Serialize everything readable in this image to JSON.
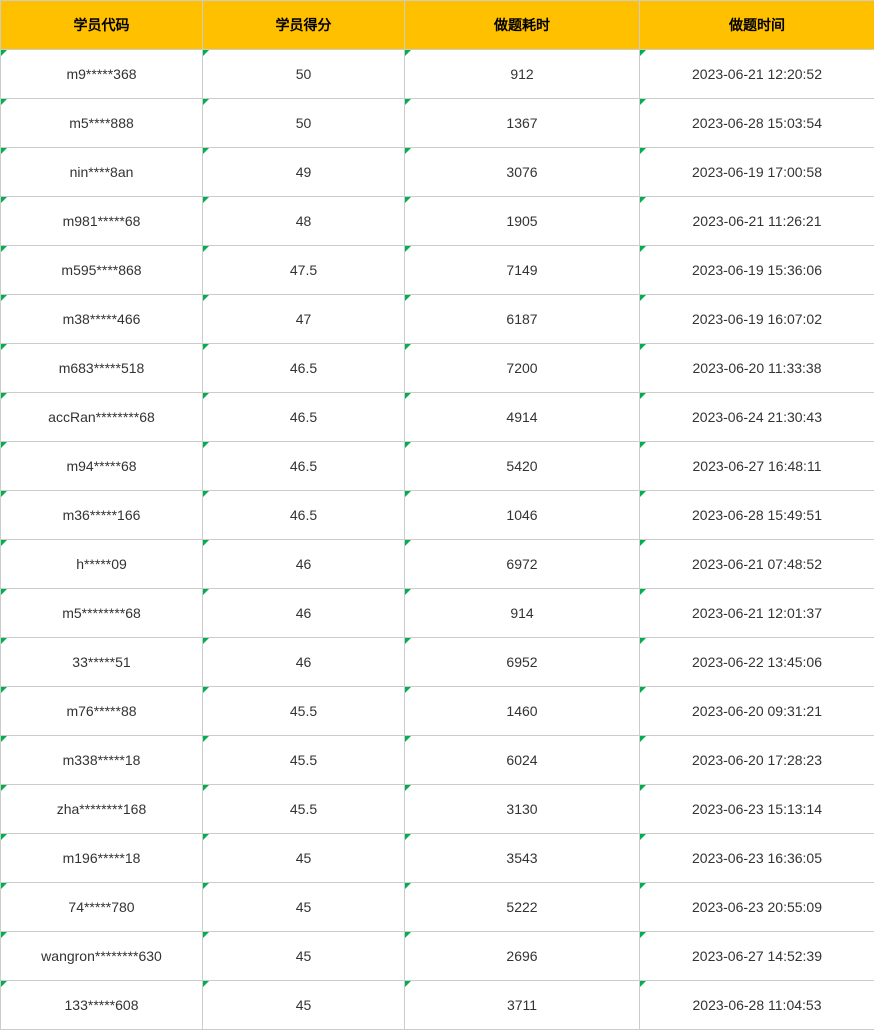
{
  "table": {
    "headers": [
      "学员代码",
      "学员得分",
      "做题耗时",
      "做题时间"
    ],
    "header_bg": "#ffc000",
    "header_color": "#000000",
    "cell_bg": "#ffffff",
    "cell_color": "#333333",
    "border_color": "#cccccc",
    "corner_marker_color": "#00b050",
    "rows": [
      [
        "m9*****368",
        "50",
        "912",
        "2023-06-21 12:20:52"
      ],
      [
        "m5****888",
        "50",
        "1367",
        "2023-06-28 15:03:54"
      ],
      [
        "nin****8an",
        "49",
        "3076",
        "2023-06-19 17:00:58"
      ],
      [
        "m981*****68",
        "48",
        "1905",
        "2023-06-21 11:26:21"
      ],
      [
        "m595****868",
        "47.5",
        "7149",
        "2023-06-19 15:36:06"
      ],
      [
        "m38*****466",
        "47",
        "6187",
        "2023-06-19 16:07:02"
      ],
      [
        "m683*****518",
        "46.5",
        "7200",
        "2023-06-20 11:33:38"
      ],
      [
        "accRan********68",
        "46.5",
        "4914",
        "2023-06-24 21:30:43"
      ],
      [
        "m94*****68",
        "46.5",
        "5420",
        "2023-06-27 16:48:11"
      ],
      [
        "m36*****166",
        "46.5",
        "1046",
        "2023-06-28 15:49:51"
      ],
      [
        "h*****09",
        "46",
        "6972",
        "2023-06-21 07:48:52"
      ],
      [
        "m5********68",
        "46",
        "914",
        "2023-06-21 12:01:37"
      ],
      [
        "33*****51",
        "46",
        "6952",
        "2023-06-22 13:45:06"
      ],
      [
        "m76*****88",
        "45.5",
        "1460",
        "2023-06-20 09:31:21"
      ],
      [
        "m338*****18",
        "45.5",
        "6024",
        "2023-06-20 17:28:23"
      ],
      [
        "zha********168",
        "45.5",
        "3130",
        "2023-06-23 15:13:14"
      ],
      [
        "m196*****18",
        "45",
        "3543",
        "2023-06-23 16:36:05"
      ],
      [
        "74*****780",
        "45",
        "5222",
        "2023-06-23 20:55:09"
      ],
      [
        "wangron********630",
        "45",
        "2696",
        "2023-06-27 14:52:39"
      ],
      [
        "133*****608",
        "45",
        "3711",
        "2023-06-28 11:04:53"
      ]
    ]
  }
}
